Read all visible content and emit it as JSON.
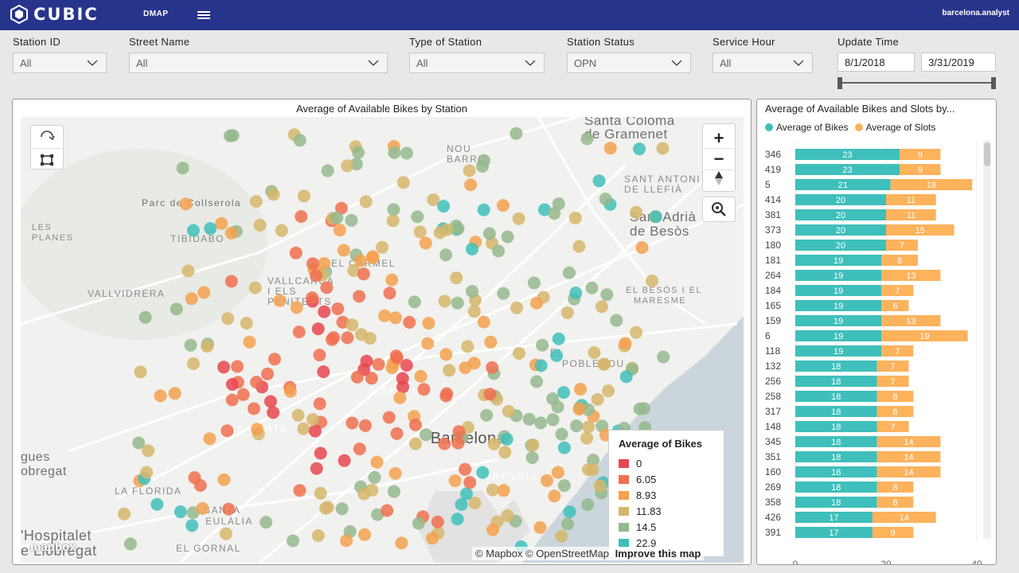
{
  "header": {
    "brand": "CUBIC",
    "module": "DMAP",
    "user": "barcelona.analyst"
  },
  "filters": [
    {
      "label": "Station ID",
      "value": "All"
    },
    {
      "label": "Street Name",
      "value": "All"
    },
    {
      "label": "Type of Station",
      "value": "All"
    },
    {
      "label": "Station Status",
      "value": "OPN"
    },
    {
      "label": "Service Hour",
      "value": "All"
    }
  ],
  "update_time": {
    "label": "Update Time",
    "start": "8/1/2018",
    "end": "3/31/2019"
  },
  "map": {
    "title": "Average of Available Bikes by Station",
    "place_labels": [
      "Santa Coloma",
      "de Gramenet",
      "NOU",
      "BARRIS",
      "SANT ANTONI",
      "DE LLEFIÀ",
      "Sant Adrià",
      "de Besòs",
      "Parc de Collserola",
      "LES",
      "PLANES",
      "TIBIDABO",
      "EL CARMEL",
      "VALLCARCA",
      "I ELS",
      "PENITENTS",
      "VALLVIDRERA",
      "EL BESÒS I EL",
      "MARESME",
      "EL",
      "POBLENOU",
      "EIXAMPLE",
      "LES CORTS",
      "Barcelona",
      "gues",
      "obregat",
      "LA FLORIDA",
      "PORT VELL",
      "SANTA",
      "EULÀLIA",
      "EL GORNAL",
      "'Hospitalet",
      "e Llobregat"
    ],
    "legend": {
      "title": "Average of Bikes",
      "items": [
        {
          "label": "0",
          "color": "#e8474f"
        },
        {
          "label": "6.05",
          "color": "#f0704f"
        },
        {
          "label": "8.93",
          "color": "#f4a14e"
        },
        {
          "label": "11.83",
          "color": "#d6b66b"
        },
        {
          "label": "14.5",
          "color": "#94b98d"
        },
        {
          "label": "22.9",
          "color": "#3fbfbb"
        }
      ]
    },
    "attribution": {
      "text": "© Mapbox © OpenStreetMap",
      "link": "Improve this map",
      "logo": "mapbox"
    },
    "zoom_in": "+",
    "zoom_out": "−"
  },
  "bars": {
    "title": "Average of Available Bikes and Slots by...",
    "legend": [
      {
        "name": "Average of Bikes",
        "color": "#3fbfbb"
      },
      {
        "name": "Average of Slots",
        "color": "#fdb25c"
      }
    ],
    "x_ticks": [
      "0",
      "20",
      "40"
    ]
  },
  "chart_data": {
    "type": "bar",
    "orientation": "horizontal",
    "stacked": true,
    "title": "Average of Available Bikes and Slots by...",
    "xlim": [
      0,
      40
    ],
    "categories": [
      "346",
      "419",
      "5",
      "414",
      "381",
      "373",
      "180",
      "181",
      "264",
      "184",
      "165",
      "159",
      "6",
      "118",
      "132",
      "256",
      "258",
      "317",
      "148",
      "345",
      "351",
      "160",
      "269",
      "358",
      "426",
      "391"
    ],
    "series": [
      {
        "name": "Average of Bikes",
        "color": "#3fbfbb",
        "values": [
          23,
          23,
          21,
          20,
          20,
          20,
          20,
          19,
          19,
          19,
          19,
          19,
          19,
          19,
          18,
          18,
          18,
          18,
          18,
          18,
          18,
          18,
          18,
          18,
          17,
          17
        ]
      },
      {
        "name": "Average of Slots",
        "color": "#fdb25c",
        "values": [
          9,
          9,
          18,
          11,
          11,
          15,
          7,
          8,
          13,
          7,
          6,
          13,
          19,
          7,
          7,
          7,
          8,
          8,
          7,
          14,
          14,
          14,
          8,
          8,
          14,
          9
        ]
      }
    ]
  }
}
